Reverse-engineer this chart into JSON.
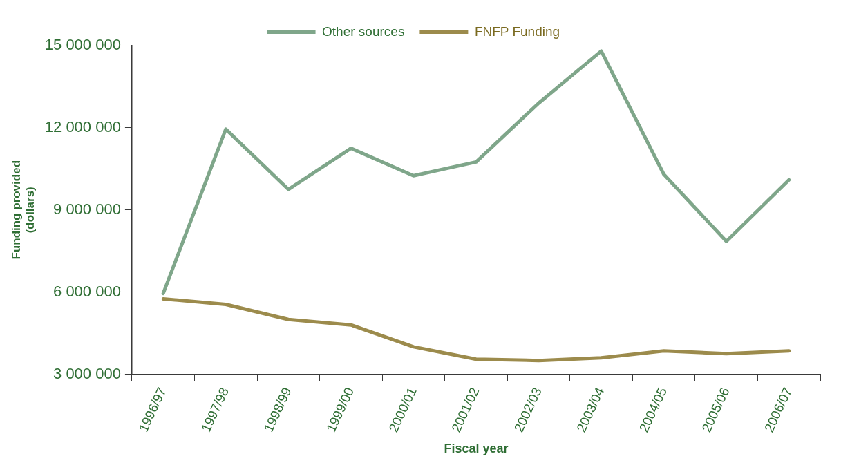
{
  "chart_data": {
    "type": "line",
    "xlabel": "Fiscal year",
    "ylabel": "Funding provided (dollars)",
    "categories": [
      "1996/97",
      "1997/98",
      "1998/99",
      "1999/00",
      "2000/01",
      "2001/02",
      "2002/03",
      "2003/04",
      "2004/05",
      "2005/06",
      "2006/07"
    ],
    "series": [
      {
        "name": "Other sources",
        "color": "#7fa68a",
        "values": [
          5950000,
          11950000,
          9750000,
          11250000,
          10250000,
          10750000,
          12900000,
          14800000,
          10300000,
          7850000,
          10100000
        ]
      },
      {
        "name": "FNFP Funding",
        "color": "#9c8b4c",
        "values": [
          5750000,
          5550000,
          5000000,
          4800000,
          4000000,
          3550000,
          3500000,
          3600000,
          3850000,
          3750000,
          3850000
        ]
      }
    ],
    "ylim": [
      3000000,
      15000000
    ],
    "yticks": [
      {
        "value": 3000000,
        "label": "3 000 000"
      },
      {
        "value": 6000000,
        "label": "6 000 000"
      },
      {
        "value": 9000000,
        "label": "9 000 000"
      },
      {
        "value": 12000000,
        "label": "12 000 000"
      },
      {
        "value": 15000000,
        "label": "15 000 000"
      }
    ],
    "grid": false,
    "legend": "top",
    "marker": "none",
    "line_style": "solid"
  }
}
